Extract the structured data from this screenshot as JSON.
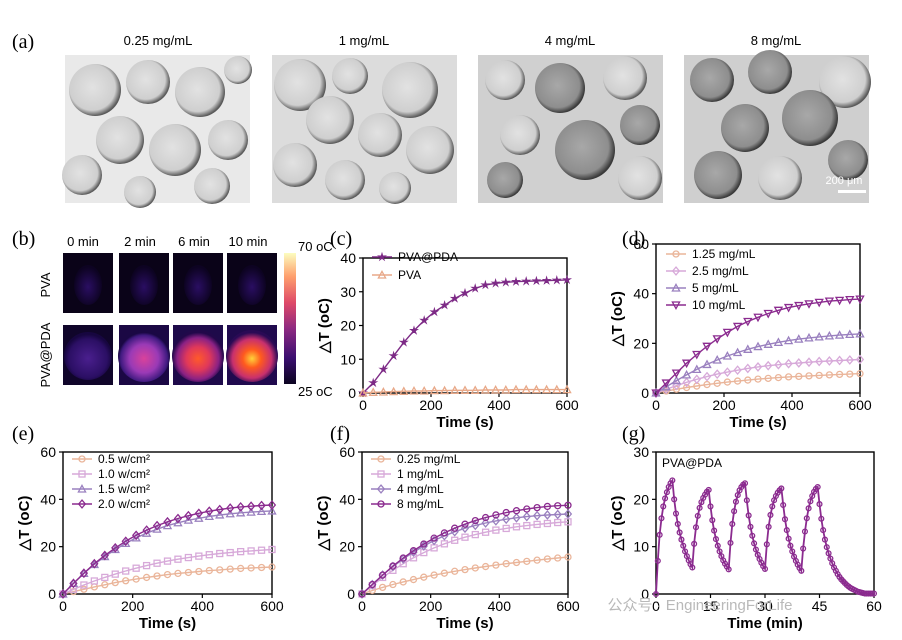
{
  "panel_a": {
    "label": "(a)",
    "titles": [
      "0.25 mg/mL",
      "1 mg/mL",
      "4 mg/mL",
      "8 mg/mL"
    ],
    "scale_bar": "200 μm"
  },
  "panel_b": {
    "label": "(b)",
    "times": [
      "0 min",
      "2 min",
      "6 min",
      "10 min"
    ],
    "rows": [
      "PVA",
      "PVA@PDA"
    ],
    "colorbar_max": "70 oC",
    "colorbar_min": "25 oC",
    "intensity": [
      [
        0.02,
        0.02,
        0.03,
        0.03
      ],
      [
        0.12,
        0.5,
        0.82,
        0.95
      ]
    ]
  },
  "chart_data": [
    {
      "id": "c",
      "label": "(c)",
      "type": "line",
      "xlabel": "Time (s)",
      "ylabel": "△T (oC)",
      "xlim": [
        0,
        600
      ],
      "ylim": [
        0,
        40
      ],
      "xticks": [
        "0",
        "200",
        "400",
        "600"
      ],
      "yticks": [
        "0",
        "10",
        "20",
        "30",
        "40"
      ],
      "series": [
        {
          "name": "PVA@PDA",
          "color": "#7d2a86",
          "marker": "star",
          "x": [
            0,
            30,
            60,
            90,
            120,
            150,
            180,
            210,
            240,
            270,
            300,
            330,
            360,
            390,
            420,
            450,
            480,
            510,
            540,
            570,
            600
          ],
          "y": [
            0,
            3,
            7,
            11,
            15,
            18.5,
            21.5,
            24,
            26,
            28,
            29.6,
            31,
            32,
            32.5,
            32.8,
            33,
            33.1,
            33.2,
            33.3,
            33.4,
            33.5
          ]
        },
        {
          "name": "PVA",
          "color": "#e8a888",
          "marker": "triangle",
          "x": [
            0,
            30,
            60,
            90,
            120,
            150,
            180,
            210,
            240,
            270,
            300,
            330,
            360,
            390,
            420,
            450,
            480,
            510,
            540,
            570,
            600
          ],
          "y": [
            0,
            0.2,
            0.3,
            0.4,
            0.5,
            0.6,
            0.6,
            0.7,
            0.7,
            0.8,
            0.8,
            0.8,
            0.9,
            0.9,
            0.9,
            1,
            1,
            1,
            1,
            1,
            1
          ]
        }
      ]
    },
    {
      "id": "d",
      "label": "(d)",
      "type": "line",
      "xlabel": "Time (s)",
      "ylabel": "△T (oC)",
      "xlim": [
        0,
        600
      ],
      "ylim": [
        0,
        60
      ],
      "xticks": [
        "0",
        "200",
        "400",
        "600"
      ],
      "yticks": [
        "0",
        "20",
        "40",
        "60"
      ],
      "series": [
        {
          "name": "1.25 mg/mL",
          "color": "#eab59a",
          "marker": "circle",
          "x": [
            0,
            30,
            60,
            90,
            120,
            150,
            180,
            210,
            240,
            270,
            300,
            330,
            360,
            390,
            420,
            450,
            480,
            510,
            540,
            570,
            600
          ],
          "y": [
            0,
            0.8,
            1.5,
            2.2,
            2.8,
            3.4,
            3.9,
            4.4,
            4.8,
            5.2,
            5.6,
            5.9,
            6.2,
            6.5,
            6.7,
            6.9,
            7.1,
            7.3,
            7.5,
            7.6,
            7.8
          ]
        },
        {
          "name": "2.5 mg/mL",
          "color": "#d7a9d9",
          "marker": "diamond",
          "x": [
            0,
            30,
            60,
            90,
            120,
            150,
            180,
            210,
            240,
            270,
            300,
            330,
            360,
            390,
            420,
            450,
            480,
            510,
            540,
            570,
            600
          ],
          "y": [
            0,
            1.5,
            3,
            4.3,
            5.5,
            6.6,
            7.6,
            8.4,
            9.2,
            9.9,
            10.5,
            11,
            11.4,
            11.8,
            12.1,
            12.4,
            12.7,
            12.9,
            13.1,
            13.3,
            13.5
          ]
        },
        {
          "name": "5 mg/mL",
          "color": "#9a80bf",
          "marker": "triangle",
          "x": [
            0,
            30,
            60,
            90,
            120,
            150,
            180,
            210,
            240,
            270,
            300,
            330,
            360,
            390,
            420,
            450,
            480,
            510,
            540,
            570,
            600
          ],
          "y": [
            0,
            2.5,
            5,
            7.3,
            9.5,
            11.5,
            13.3,
            14.9,
            16.3,
            17.6,
            18.7,
            19.6,
            20.4,
            21.1,
            21.7,
            22.2,
            22.6,
            23,
            23.3,
            23.6,
            23.8
          ]
        },
        {
          "name": "10 mg/mL",
          "color": "#8b2b8f",
          "marker": "triangle-down",
          "x": [
            0,
            30,
            60,
            90,
            120,
            150,
            180,
            210,
            240,
            270,
            300,
            330,
            360,
            390,
            420,
            450,
            480,
            510,
            540,
            570,
            600
          ],
          "y": [
            0,
            4,
            8,
            12,
            15.5,
            18.8,
            21.8,
            24.4,
            26.8,
            28.8,
            30.5,
            32,
            33.3,
            34.4,
            35.2,
            35.9,
            36.5,
            37,
            37.3,
            37.6,
            37.8
          ]
        }
      ]
    },
    {
      "id": "e",
      "label": "(e)",
      "type": "line",
      "xlabel": "Time (s)",
      "ylabel": "△T (oC)",
      "xlim": [
        0,
        600
      ],
      "ylim": [
        0,
        60
      ],
      "xticks": [
        "0",
        "200",
        "400",
        "600"
      ],
      "yticks": [
        "0",
        "20",
        "40",
        "60"
      ],
      "series": [
        {
          "name": "0.5 w/cm²",
          "color": "#eab59a",
          "marker": "circle",
          "x": [
            0,
            30,
            60,
            90,
            120,
            150,
            180,
            210,
            240,
            270,
            300,
            330,
            360,
            390,
            420,
            450,
            480,
            510,
            540,
            570,
            600
          ],
          "y": [
            0,
            1,
            2,
            3,
            3.9,
            4.8,
            5.6,
            6.3,
            7,
            7.6,
            8.2,
            8.7,
            9.1,
            9.5,
            9.9,
            10.2,
            10.5,
            10.8,
            11,
            11.2,
            11.4
          ]
        },
        {
          "name": "1.0 w/cm²",
          "color": "#d7a9d9",
          "marker": "square",
          "x": [
            0,
            30,
            60,
            90,
            120,
            150,
            180,
            210,
            240,
            270,
            300,
            330,
            360,
            390,
            420,
            450,
            480,
            510,
            540,
            570,
            600
          ],
          "y": [
            0,
            2,
            3.8,
            5.5,
            7,
            8.4,
            9.7,
            10.9,
            12,
            13,
            13.9,
            14.7,
            15.4,
            16,
            16.6,
            17.1,
            17.5,
            17.9,
            18.2,
            18.5,
            18.8
          ]
        },
        {
          "name": "1.5 w/cm²",
          "color": "#9a80bf",
          "marker": "triangle",
          "x": [
            0,
            30,
            60,
            90,
            120,
            150,
            180,
            210,
            240,
            270,
            300,
            330,
            360,
            390,
            420,
            450,
            480,
            510,
            540,
            570,
            600
          ],
          "y": [
            0,
            4.5,
            8.7,
            12.5,
            15.8,
            18.8,
            21.4,
            23.7,
            25.7,
            27.4,
            28.9,
            30.1,
            31.2,
            32,
            32.8,
            33.4,
            33.9,
            34.3,
            34.6,
            34.9,
            35.1
          ]
        },
        {
          "name": "2.0 w/cm²",
          "color": "#8b2b8f",
          "marker": "diamond",
          "x": [
            0,
            30,
            60,
            90,
            120,
            150,
            180,
            210,
            240,
            270,
            300,
            330,
            360,
            390,
            420,
            450,
            480,
            510,
            540,
            570,
            600
          ],
          "y": [
            0,
            4.5,
            8.8,
            12.8,
            16.3,
            19.5,
            22.3,
            24.8,
            27,
            28.9,
            30.5,
            31.9,
            33.1,
            34.1,
            35,
            35.7,
            36.3,
            36.8,
            37.1,
            37.4,
            37.6
          ]
        }
      ]
    },
    {
      "id": "f",
      "label": "(f)",
      "type": "line",
      "xlabel": "Time (s)",
      "ylabel": "△T (oC)",
      "xlim": [
        0,
        600
      ],
      "ylim": [
        0,
        60
      ],
      "xticks": [
        "0",
        "200",
        "400",
        "600"
      ],
      "yticks": [
        "0",
        "20",
        "40",
        "60"
      ],
      "series": [
        {
          "name": "0.25 mg/mL",
          "color": "#eab59a",
          "marker": "circle",
          "x": [
            0,
            30,
            60,
            90,
            120,
            150,
            180,
            210,
            240,
            270,
            300,
            330,
            360,
            390,
            420,
            450,
            480,
            510,
            540,
            570,
            600
          ],
          "y": [
            0,
            1.5,
            2.8,
            4,
            5.1,
            6.1,
            7.1,
            8,
            8.8,
            9.6,
            10.3,
            11,
            11.6,
            12.2,
            12.8,
            13.3,
            13.8,
            14.3,
            14.8,
            15.2,
            15.6
          ]
        },
        {
          "name": "1 mg/mL",
          "color": "#d7a9d9",
          "marker": "square",
          "x": [
            0,
            30,
            60,
            90,
            120,
            150,
            180,
            210,
            240,
            270,
            300,
            330,
            360,
            390,
            420,
            450,
            480,
            510,
            540,
            570,
            600
          ],
          "y": [
            0,
            3.5,
            7,
            10,
            12.8,
            15.3,
            17.5,
            19.5,
            21.2,
            22.7,
            24,
            25.1,
            26.1,
            27,
            27.7,
            28.4,
            28.9,
            29.4,
            29.8,
            30.2,
            30.5
          ]
        },
        {
          "name": "4 mg/mL",
          "color": "#9a80bf",
          "marker": "diamond",
          "x": [
            0,
            30,
            60,
            90,
            120,
            150,
            180,
            210,
            240,
            270,
            300,
            330,
            360,
            390,
            420,
            450,
            480,
            510,
            540,
            570,
            600
          ],
          "y": [
            0,
            4,
            8,
            11.6,
            14.8,
            17.7,
            20.3,
            22.6,
            24.6,
            26.3,
            27.8,
            29,
            30,
            30.9,
            31.6,
            32.2,
            32.7,
            33.1,
            33.4,
            33.6,
            33.8
          ]
        },
        {
          "name": "8 mg/mL",
          "color": "#8b2b8f",
          "marker": "circle",
          "x": [
            0,
            30,
            60,
            90,
            120,
            150,
            180,
            210,
            240,
            270,
            300,
            330,
            360,
            390,
            420,
            450,
            480,
            510,
            540,
            570,
            600
          ],
          "y": [
            0,
            4,
            8,
            11.8,
            15.2,
            18.3,
            21.1,
            23.6,
            25.8,
            27.8,
            29.5,
            31,
            32.3,
            33.4,
            34.4,
            35.2,
            35.9,
            36.5,
            37,
            37.3,
            37.5
          ]
        }
      ]
    },
    {
      "id": "g",
      "label": "(g)",
      "type": "line",
      "xlabel": "Time (min)",
      "ylabel": "△T (oC)",
      "xlim": [
        0,
        60
      ],
      "ylim": [
        0,
        30
      ],
      "xticks": [
        "0",
        "15",
        "30",
        "45",
        "60"
      ],
      "yticks": [
        "0",
        "10",
        "20",
        "30"
      ],
      "annotation": "PVA@PDA",
      "series": [
        {
          "name": "PVA@PDA",
          "color": "#8b2b8f",
          "marker": "circle",
          "x": [
            0,
            0.5,
            1,
            1.5,
            2,
            2.5,
            3,
            3.5,
            4,
            4.5,
            5,
            5.5,
            6,
            6.5,
            7,
            7.5,
            8,
            8.5,
            9,
            9.5,
            10,
            10.5,
            11,
            11.5,
            12,
            12.5,
            13,
            13.5,
            14,
            14.5,
            15,
            15.5,
            16,
            16.5,
            17,
            17.5,
            18,
            18.5,
            19,
            19.5,
            20,
            20.5,
            21,
            21.5,
            22,
            22.5,
            23,
            23.5,
            24,
            24.5,
            25,
            25.5,
            26,
            26.5,
            27,
            27.5,
            28,
            28.5,
            29,
            29.5,
            30,
            30.5,
            31,
            31.5,
            32,
            32.5,
            33,
            33.5,
            34,
            34.5,
            35,
            35.5,
            36,
            36.5,
            37,
            37.5,
            38,
            38.5,
            39,
            39.5,
            40,
            40.5,
            41,
            41.5,
            42,
            42.5,
            43,
            43.5,
            44,
            44.5,
            45,
            45.5,
            46,
            46.5,
            47,
            47.5,
            48,
            48.5,
            49,
            49.5,
            50,
            50.5,
            51,
            51.5,
            52,
            52.5,
            53,
            53.5,
            54,
            54.5,
            55,
            55.5,
            56,
            56.5,
            57,
            57.5,
            58,
            58.5,
            59,
            59.5,
            60
          ],
          "y": [
            0,
            7,
            12.5,
            16,
            18.5,
            20.2,
            21.5,
            22.6,
            23.4,
            24,
            20,
            17,
            14.8,
            13,
            11.5,
            10.2,
            9,
            8,
            7.1,
            6.3,
            5.6,
            10.6,
            14.1,
            16.5,
            18.2,
            19.4,
            20.3,
            21,
            21.6,
            22,
            18.5,
            15.6,
            13.4,
            11.6,
            10.2,
            9,
            8,
            7.1,
            6.4,
            5.8,
            5.2,
            10.8,
            14.8,
            17.5,
            19.5,
            20.9,
            21.9,
            22.6,
            23.1,
            23.4,
            19.8,
            16.6,
            14.2,
            12.3,
            10.7,
            9.4,
            8.3,
            7.4,
            6.6,
            5.9,
            5.3,
            10.5,
            14.2,
            16.7,
            18.5,
            19.8,
            20.7,
            21.4,
            21.9,
            22.3,
            18.8,
            15.8,
            13.5,
            11.7,
            10.2,
            9,
            7.9,
            7,
            6.2,
            5.5,
            4.9,
            9.6,
            13.2,
            16,
            18.1,
            19.6,
            20.7,
            21.6,
            22.2,
            22.6,
            19,
            15.9,
            13.5,
            11.5,
            9.9,
            8.6,
            7.5,
            6.5,
            5.6,
            4.9,
            4.2,
            3.6,
            3.1,
            2.7,
            2.3,
            1.9,
            1.6,
            1.3,
            1.1,
            0.9,
            0.7,
            0.5,
            0.4,
            0.3,
            0.2,
            0.1,
            0.1,
            0.1,
            0.1,
            0.1,
            0.1
          ]
        }
      ]
    }
  ],
  "watermark": "公众号 · EngineeringForLife"
}
